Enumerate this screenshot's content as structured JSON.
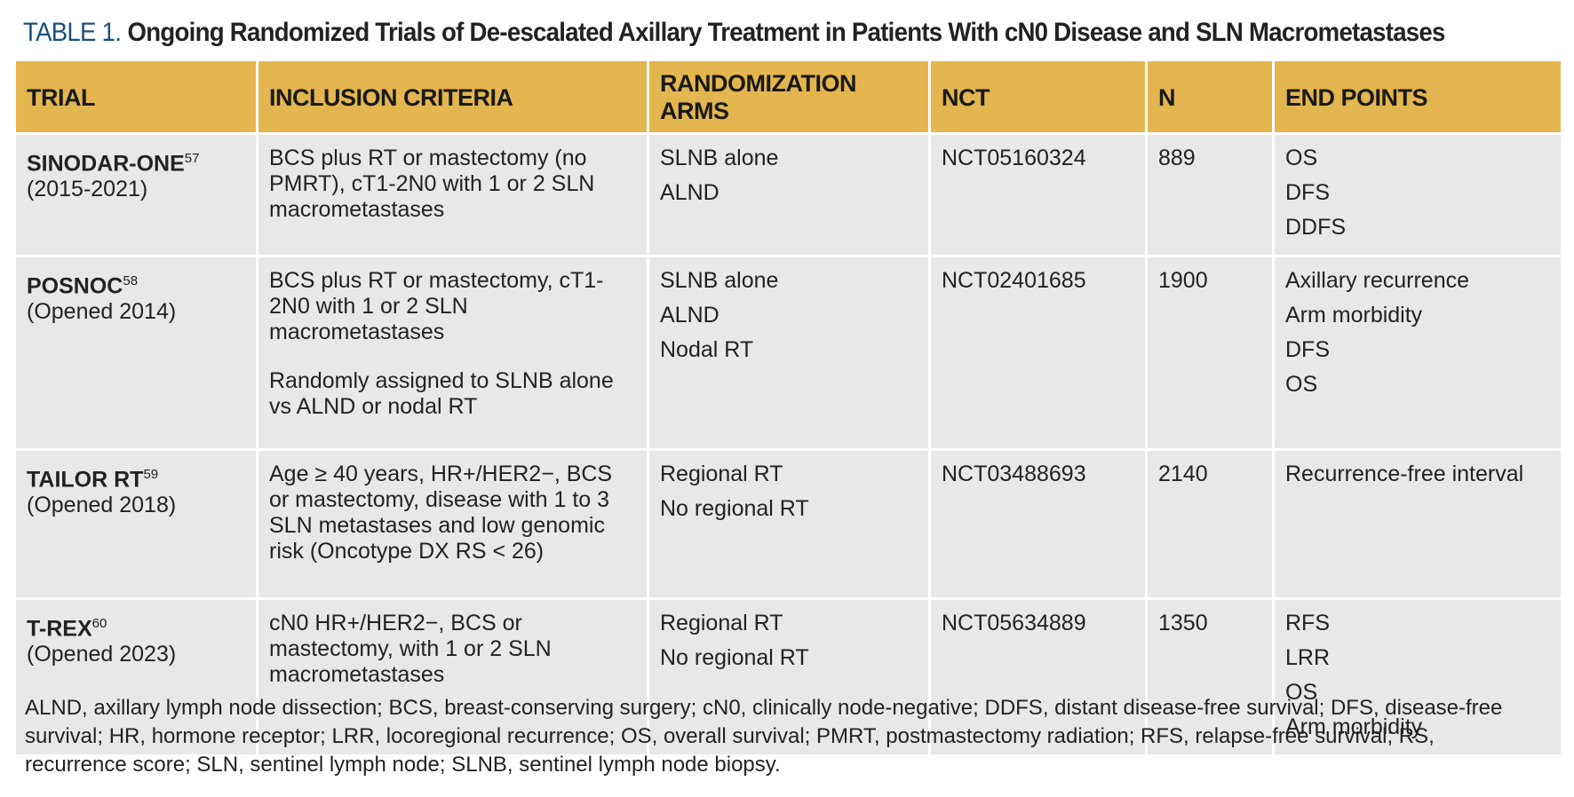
{
  "header": {
    "label": "TABLE 1.",
    "title": "Ongoing Randomized Trials of De-escalated Axillary Treatment in Patients With cN0 Disease and SLN Macrometastases"
  },
  "table": {
    "columns": [
      "TRIAL",
      "INCLUSION CRITERIA",
      "RANDOMIZATION ARMS",
      "NCT",
      "N",
      "END POINTS"
    ],
    "rows": [
      {
        "trial": "SINODAR-ONE",
        "ref": "57",
        "period": "(2015-2021)",
        "criteria": [
          "BCS plus RT or mastectomy (no PMRT), cT1-2N0 with 1 or 2 SLN macrometastases"
        ],
        "arms": [
          "SLNB alone",
          "ALND"
        ],
        "nct": "NCT05160324",
        "n": 889,
        "endpoints": [
          "OS",
          "DFS",
          "DDFS"
        ]
      },
      {
        "trial": "POSNOC",
        "ref": "58",
        "period": "(Opened 2014)",
        "criteria": [
          "BCS plus RT or mastectomy, cT1-2N0 with 1 or 2 SLN macrometastases",
          "Randomly assigned to SLNB alone vs ALND or nodal RT"
        ],
        "arms": [
          "SLNB alone",
          "ALND",
          "Nodal RT"
        ],
        "nct": "NCT02401685",
        "n": 1900,
        "endpoints": [
          "Axillary recurrence",
          "Arm morbidity",
          "DFS",
          "OS"
        ]
      },
      {
        "trial": "TAILOR RT",
        "ref": "59",
        "period": "(Opened 2018)",
        "criteria": [
          "Age ≥ 40 years, HR+/HER2−, BCS or mastectomy, disease with 1 to 3 SLN metastases and low genomic risk (Oncotype DX RS < 26)"
        ],
        "arms": [
          "Regional RT",
          "No regional RT"
        ],
        "nct": "NCT03488693",
        "n": 2140,
        "endpoints": [
          "Recurrence-free interval"
        ]
      },
      {
        "trial": "T-REX",
        "ref": "60",
        "period": "(Opened 2023)",
        "criteria": [
          "cN0 HR+/HER2−, BCS or mastectomy, with 1 or 2 SLN macrometastases"
        ],
        "arms": [
          "Regional RT",
          "No regional RT"
        ],
        "nct": "NCT05634889",
        "n": 1350,
        "endpoints": [
          "RFS",
          "LRR",
          "OS",
          "Arm morbidity"
        ]
      }
    ]
  },
  "footnote": "ALND, axillary lymph node dissection; BCS, breast-conserving surgery; cN0, clinically node-negative; DDFS, distant disease-free survival; DFS, disease-free survival; HR, hormone receptor; LRR, locoregional recurrence; OS, overall survival; PMRT, postmastectomy radiation; RFS, relapse-free survival; RS, recurrence score; SLN, sentinel lymph node; SLNB, sentinel lymph node biopsy."
}
